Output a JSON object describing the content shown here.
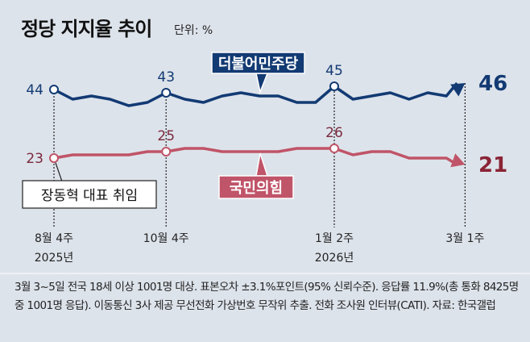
{
  "title": "정당 지지율 추이",
  "unit": "단위: %",
  "chart_data": {
    "type": "line",
    "title": "정당 지지율 추이",
    "ylabel": "%",
    "x_ticks": [
      {
        "index": 0,
        "week": "8월 4주",
        "year": "2025년"
      },
      {
        "index": 6,
        "week": "10월 4주",
        "year": ""
      },
      {
        "index": 15,
        "week": "1월 2주",
        "year": "2026년"
      },
      {
        "index": 22,
        "week": "3월 1주",
        "year": ""
      }
    ],
    "series": [
      {
        "name": "더불어민주당",
        "color": "#123a73",
        "values": [
          44,
          41,
          42,
          41,
          39,
          40,
          43,
          41,
          40,
          42,
          43,
          42,
          42,
          40,
          40,
          45,
          41,
          42,
          43,
          41,
          43,
          42,
          46
        ],
        "labeled_points": [
          {
            "index": 0,
            "label": "44"
          },
          {
            "index": 6,
            "label": "43"
          },
          {
            "index": 15,
            "label": "45"
          }
        ],
        "end_label": "46"
      },
      {
        "name": "국민의힘",
        "color": "#c05468",
        "values": [
          23,
          24,
          24,
          24,
          24,
          25,
          25,
          26,
          26,
          25,
          25,
          25,
          25,
          26,
          26,
          26,
          24,
          25,
          25,
          23,
          23,
          23,
          21
        ],
        "labeled_points": [
          {
            "index": 0,
            "label": "23"
          },
          {
            "index": 6,
            "label": "25"
          },
          {
            "index": 15,
            "label": "26"
          }
        ],
        "end_label": "21"
      }
    ],
    "annotation": "장동혁 대표 취임"
  },
  "footnote": "3월 3~5일 전국 18세 이상 1001명 대상. 표본오차 ±3.1%포인트(95% 신뢰수준). 응답률 11.9%(총 통화 8425명 중 1001명 응답). 이동통신 3사 제공 무선전화 가상번호 무작위 추출. 전화 조사원 인터뷰(CATI). 자료: 한국갤럽"
}
